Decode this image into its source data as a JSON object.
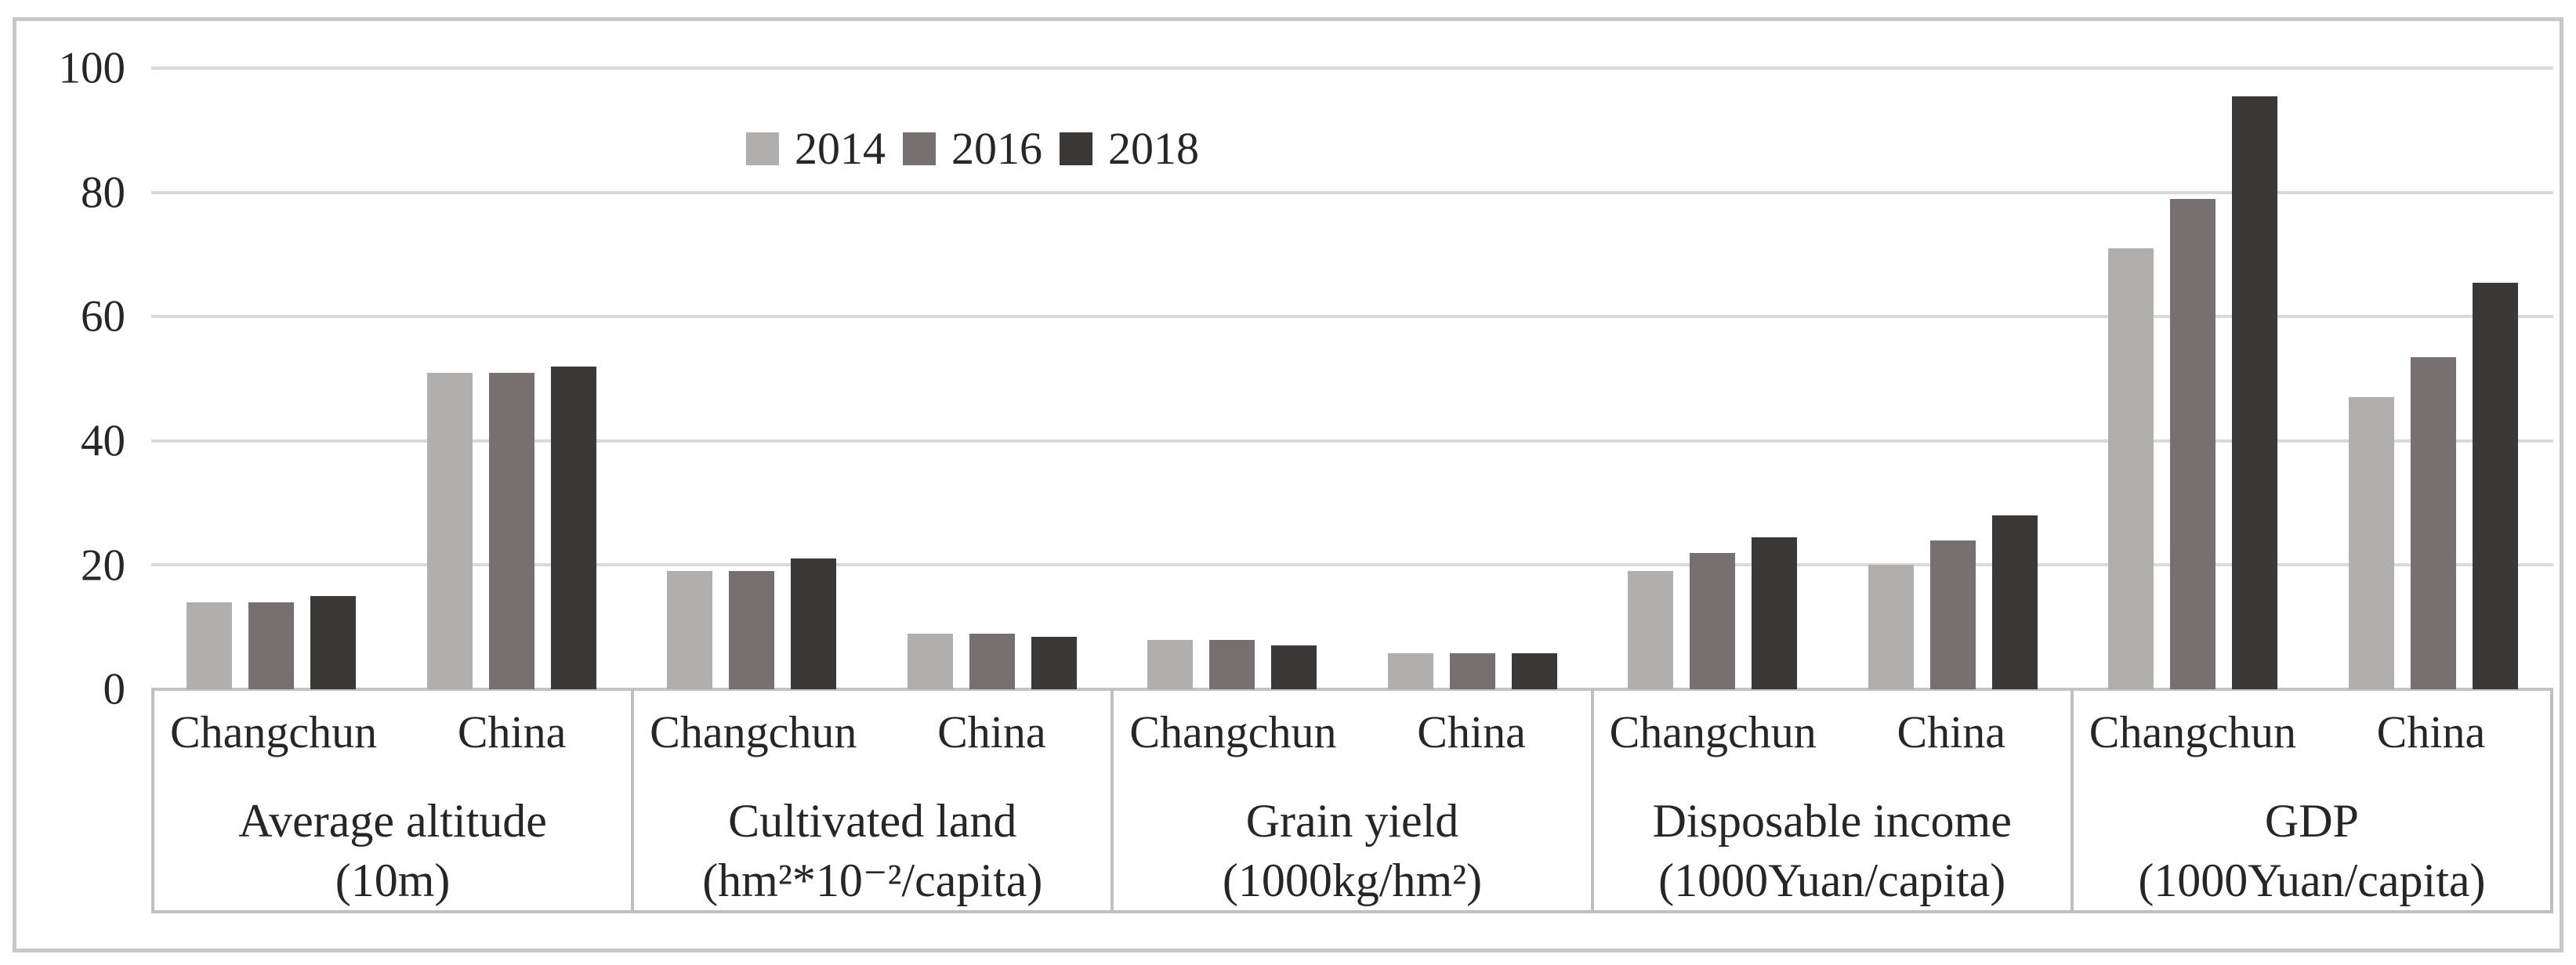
{
  "chart_data": {
    "type": "bar",
    "title": "",
    "xlabel": "",
    "ylabel": "",
    "ylim": [
      0,
      100
    ],
    "grid": true,
    "yticks": [
      "100",
      "80",
      "60",
      "40",
      "20",
      "0"
    ],
    "legend": {
      "position": "top",
      "entries": [
        {
          "label": "2014",
          "color": "#b1aeae"
        },
        {
          "label": "2016",
          "color": "#767070"
        },
        {
          "label": "2018",
          "color": "#3b3838"
        }
      ]
    },
    "series": [
      "2014",
      "2016",
      "2018"
    ],
    "groups": [
      {
        "label_lines": [
          "Average altitude",
          "(10m)"
        ],
        "subgroups": [
          {
            "name": "Changchun",
            "values": [
              14,
              14,
              15
            ]
          },
          {
            "name": "China",
            "values": [
              51,
              51,
              52
            ]
          }
        ]
      },
      {
        "label_lines": [
          "Cultivated land",
          "(hm²*10⁻²/capita)"
        ],
        "subgroups": [
          {
            "name": "Changchun",
            "values": [
              19,
              19,
              21
            ]
          },
          {
            "name": "China",
            "values": [
              9,
              9,
              8.5
            ]
          }
        ]
      },
      {
        "label_lines": [
          "Grain yield",
          "(1000kg/hm²)"
        ],
        "subgroups": [
          {
            "name": "Changchun",
            "values": [
              8,
              8,
              7
            ]
          },
          {
            "name": "China",
            "values": [
              5.8,
              5.8,
              5.8
            ]
          }
        ]
      },
      {
        "label_lines": [
          "Disposable income",
          "(1000Yuan/capita)"
        ],
        "subgroups": [
          {
            "name": "Changchun",
            "values": [
              19,
              22,
              24.5
            ]
          },
          {
            "name": "China",
            "values": [
              20,
              24,
              28
            ]
          }
        ]
      },
      {
        "label_lines": [
          "GDP",
          "(1000Yuan/capita)"
        ],
        "subgroups": [
          {
            "name": "Changchun",
            "values": [
              71,
              79,
              95.5
            ]
          },
          {
            "name": "China",
            "values": [
              47,
              53.5,
              65.5
            ]
          }
        ]
      }
    ],
    "colors": {
      "grid": "#d9d9d9",
      "axis": "#bfbfbf",
      "text": "#262626",
      "frame": "#c9c7c7"
    }
  }
}
